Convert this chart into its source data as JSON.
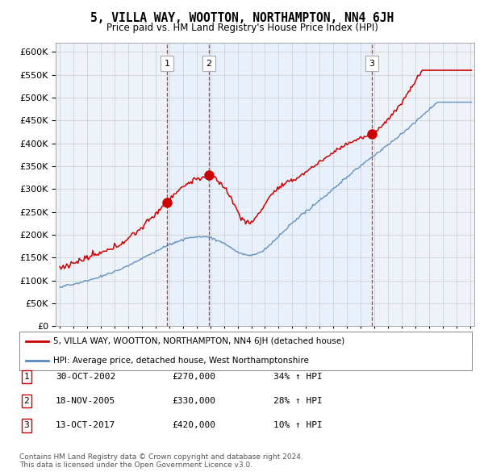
{
  "title": "5, VILLA WAY, WOOTTON, NORTHAMPTON, NN4 6JH",
  "subtitle": "Price paid vs. HM Land Registry's House Price Index (HPI)",
  "ytick_values": [
    0,
    50000,
    100000,
    150000,
    200000,
    250000,
    300000,
    350000,
    400000,
    450000,
    500000,
    550000,
    600000
  ],
  "xlim": [
    1994.7,
    2025.3
  ],
  "ylim": [
    0,
    620000
  ],
  "sales": [
    {
      "date_year": 2002.83,
      "price": 270000,
      "label": "1"
    },
    {
      "date_year": 2005.88,
      "price": 330000,
      "label": "2"
    },
    {
      "date_year": 2017.79,
      "price": 420000,
      "label": "3"
    }
  ],
  "legend_red_label": "5, VILLA WAY, WOOTTON, NORTHAMPTON, NN4 6JH (detached house)",
  "legend_blue_label": "HPI: Average price, detached house, West Northamptonshire",
  "table_rows": [
    {
      "num": "1",
      "date": "30-OCT-2002",
      "price": "£270,000",
      "change": "34% ↑ HPI"
    },
    {
      "num": "2",
      "date": "18-NOV-2005",
      "price": "£330,000",
      "change": "28% ↑ HPI"
    },
    {
      "num": "3",
      "date": "13-OCT-2017",
      "price": "£420,000",
      "change": "10% ↑ HPI"
    }
  ],
  "footnote": "Contains HM Land Registry data © Crown copyright and database right 2024.\nThis data is licensed under the Open Government Licence v3.0.",
  "red_color": "#cc0000",
  "blue_color": "#5588bb",
  "shade_color": "#ddeeff",
  "grid_color": "#cccccc",
  "background_color": "#ffffff"
}
